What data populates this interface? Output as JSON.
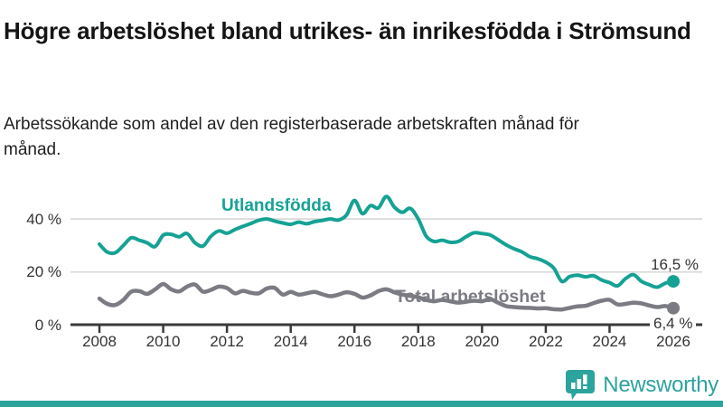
{
  "header": {
    "title": "Högre arbetslöshet bland utrikes- än inrikesfödda i Strömsund",
    "subtitle": "Arbetssökande som andel av den registerbaserade arbetskraften månad för månad."
  },
  "chart_data": {
    "type": "line",
    "title": "Högre arbetslöshet bland utrikes- än inrikesfödda i Strömsund",
    "unit": "%",
    "grid": "horizontal",
    "legend_position": "inline-labels",
    "xlim": [
      2007.6,
      2026.9
    ],
    "ylim": [
      0,
      52
    ],
    "x_ticks": [
      {
        "label": "2008",
        "year": 2008
      },
      {
        "label": "2010",
        "year": 2010
      },
      {
        "label": "2012",
        "year": 2012
      },
      {
        "label": "2014",
        "year": 2014
      },
      {
        "label": "2016",
        "year": 2016
      },
      {
        "label": "2018",
        "year": 2018
      },
      {
        "label": "2020",
        "year": 2020
      },
      {
        "label": "2022",
        "year": 2022
      },
      {
        "label": "2024",
        "year": 2024
      },
      {
        "label": "2026",
        "year": 2026
      }
    ],
    "y_ticks": [
      {
        "label": "0 %",
        "value": 0
      },
      {
        "label": "20 %",
        "value": 20
      },
      {
        "label": "40 %",
        "value": 40
      }
    ],
    "series": [
      {
        "name": "Utlandsfödda",
        "color": "#15A294",
        "end_label": "16,5 %",
        "end_value": 16.5,
        "points": [
          [
            2008.0,
            30.5
          ],
          [
            2008.25,
            27.5
          ],
          [
            2008.5,
            27.3
          ],
          [
            2008.75,
            30.0
          ],
          [
            2009.0,
            32.9
          ],
          [
            2009.25,
            32.0
          ],
          [
            2009.5,
            31.0
          ],
          [
            2009.75,
            29.6
          ],
          [
            2010.0,
            33.9
          ],
          [
            2010.25,
            34.2
          ],
          [
            2010.5,
            33.3
          ],
          [
            2010.75,
            34.5
          ],
          [
            2011.0,
            31.0
          ],
          [
            2011.25,
            29.8
          ],
          [
            2011.5,
            33.5
          ],
          [
            2011.75,
            35.5
          ],
          [
            2012.0,
            34.6
          ],
          [
            2012.25,
            36.0
          ],
          [
            2012.5,
            37.2
          ],
          [
            2012.75,
            38.3
          ],
          [
            2013.0,
            39.5
          ],
          [
            2013.25,
            40.0
          ],
          [
            2013.5,
            39.2
          ],
          [
            2013.75,
            38.5
          ],
          [
            2014.0,
            38.0
          ],
          [
            2014.25,
            38.8
          ],
          [
            2014.5,
            38.2
          ],
          [
            2014.75,
            39.0
          ],
          [
            2015.0,
            39.5
          ],
          [
            2015.25,
            40.0
          ],
          [
            2015.5,
            39.6
          ],
          [
            2015.75,
            41.5
          ],
          [
            2016.0,
            47.0
          ],
          [
            2016.25,
            42.0
          ],
          [
            2016.5,
            45.0
          ],
          [
            2016.75,
            44.2
          ],
          [
            2017.0,
            48.5
          ],
          [
            2017.25,
            44.5
          ],
          [
            2017.5,
            42.5
          ],
          [
            2017.75,
            44.0
          ],
          [
            2018.0,
            40.0
          ],
          [
            2018.25,
            33.5
          ],
          [
            2018.5,
            31.5
          ],
          [
            2018.75,
            32.0
          ],
          [
            2019.0,
            31.2
          ],
          [
            2019.25,
            31.5
          ],
          [
            2019.5,
            33.3
          ],
          [
            2019.75,
            34.8
          ],
          [
            2020.0,
            34.5
          ],
          [
            2020.25,
            34.0
          ],
          [
            2020.5,
            32.2
          ],
          [
            2020.75,
            30.3
          ],
          [
            2021.0,
            28.8
          ],
          [
            2021.25,
            27.6
          ],
          [
            2021.5,
            25.8
          ],
          [
            2021.75,
            25.0
          ],
          [
            2022.0,
            23.7
          ],
          [
            2022.25,
            21.5
          ],
          [
            2022.5,
            16.5
          ],
          [
            2022.75,
            18.3
          ],
          [
            2023.0,
            18.8
          ],
          [
            2023.25,
            18.2
          ],
          [
            2023.5,
            18.6
          ],
          [
            2023.75,
            17.0
          ],
          [
            2024.0,
            16.0
          ],
          [
            2024.25,
            14.8
          ],
          [
            2024.5,
            17.5
          ],
          [
            2024.75,
            19.0
          ],
          [
            2025.0,
            16.5
          ],
          [
            2025.25,
            15.2
          ],
          [
            2025.5,
            14.3
          ],
          [
            2025.75,
            15.8
          ],
          [
            2026.0,
            16.5
          ]
        ]
      },
      {
        "name": "Total arbetslöshet",
        "color": "#7B7B83",
        "end_label": "6,4 %",
        "end_value": 6.4,
        "points": [
          [
            2008.0,
            10.0
          ],
          [
            2008.25,
            8.0
          ],
          [
            2008.5,
            7.6
          ],
          [
            2008.75,
            9.5
          ],
          [
            2009.0,
            12.6
          ],
          [
            2009.25,
            12.8
          ],
          [
            2009.5,
            11.8
          ],
          [
            2009.75,
            13.5
          ],
          [
            2010.0,
            15.5
          ],
          [
            2010.25,
            13.5
          ],
          [
            2010.5,
            12.7
          ],
          [
            2010.75,
            14.5
          ],
          [
            2011.0,
            15.3
          ],
          [
            2011.25,
            12.6
          ],
          [
            2011.5,
            13.3
          ],
          [
            2011.75,
            14.5
          ],
          [
            2012.0,
            14.0
          ],
          [
            2012.25,
            12.0
          ],
          [
            2012.5,
            12.9
          ],
          [
            2012.75,
            12.2
          ],
          [
            2013.0,
            12.0
          ],
          [
            2013.25,
            13.8
          ],
          [
            2013.5,
            14.0
          ],
          [
            2013.75,
            11.5
          ],
          [
            2014.0,
            12.5
          ],
          [
            2014.25,
            11.5
          ],
          [
            2014.5,
            12.0
          ],
          [
            2014.75,
            12.5
          ],
          [
            2015.0,
            11.6
          ],
          [
            2015.25,
            10.9
          ],
          [
            2015.5,
            11.5
          ],
          [
            2015.75,
            12.4
          ],
          [
            2016.0,
            11.8
          ],
          [
            2016.25,
            10.4
          ],
          [
            2016.5,
            11.2
          ],
          [
            2016.75,
            12.8
          ],
          [
            2017.0,
            13.5
          ],
          [
            2017.25,
            12.4
          ],
          [
            2017.5,
            11.5
          ],
          [
            2017.75,
            11.0
          ],
          [
            2018.0,
            10.5
          ],
          [
            2018.25,
            9.5
          ],
          [
            2018.5,
            9.0
          ],
          [
            2018.75,
            9.5
          ],
          [
            2019.0,
            9.0
          ],
          [
            2019.25,
            8.5
          ],
          [
            2019.5,
            8.8
          ],
          [
            2019.75,
            9.2
          ],
          [
            2020.0,
            9.0
          ],
          [
            2020.25,
            9.8
          ],
          [
            2020.5,
            8.5
          ],
          [
            2020.75,
            7.2
          ],
          [
            2021.0,
            6.8
          ],
          [
            2021.25,
            6.6
          ],
          [
            2021.5,
            6.5
          ],
          [
            2021.75,
            6.3
          ],
          [
            2022.0,
            6.4
          ],
          [
            2022.25,
            6.0
          ],
          [
            2022.5,
            5.9
          ],
          [
            2022.75,
            6.5
          ],
          [
            2023.0,
            7.1
          ],
          [
            2023.25,
            7.3
          ],
          [
            2023.5,
            8.3
          ],
          [
            2023.75,
            9.2
          ],
          [
            2024.0,
            9.5
          ],
          [
            2024.25,
            7.8
          ],
          [
            2024.5,
            8.0
          ],
          [
            2024.75,
            8.5
          ],
          [
            2025.0,
            8.2
          ],
          [
            2025.25,
            7.4
          ],
          [
            2025.5,
            6.8
          ],
          [
            2025.75,
            7.2
          ],
          [
            2026.0,
            6.4
          ]
        ]
      }
    ]
  },
  "branding": {
    "wordmark": "Newsworthy",
    "logo_icon": "bar-chart-speech-bubble",
    "accent_color": "#2CA49E"
  },
  "style": {
    "grid_color": "#d9d9d9",
    "axis_color": "#3a3a3a",
    "text_color": "#333333"
  }
}
